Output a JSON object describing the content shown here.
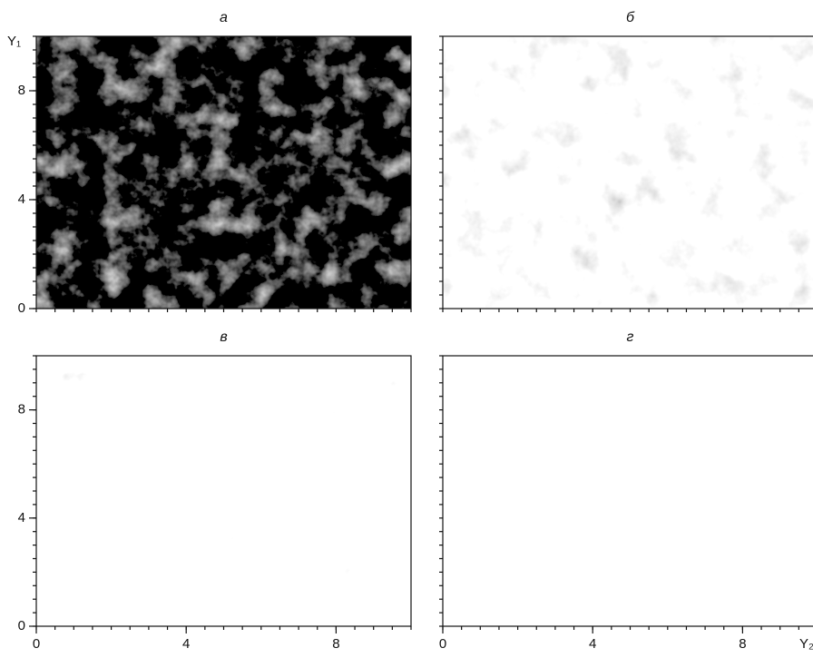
{
  "chart_data": [
    {
      "type": "image",
      "title": "а",
      "ylabel": "Y₁",
      "xlim": [
        0,
        10
      ],
      "ylim": [
        0,
        10
      ],
      "yticks": [
        0,
        4,
        8
      ]
    },
    {
      "type": "image",
      "title": "б",
      "xlim": [
        0,
        10
      ],
      "ylim": [
        0,
        10
      ]
    },
    {
      "type": "image",
      "title": "в",
      "xlim": [
        0,
        10
      ],
      "ylim": [
        0,
        10
      ],
      "xticks": [
        0,
        4,
        8
      ],
      "yticks": [
        0,
        4,
        8
      ]
    },
    {
      "type": "image",
      "title": "г",
      "xlabel": "Y₂",
      "xlim": [
        0,
        10
      ],
      "ylim": [
        0,
        10
      ],
      "xticks": [
        0,
        4,
        8
      ]
    }
  ]
}
